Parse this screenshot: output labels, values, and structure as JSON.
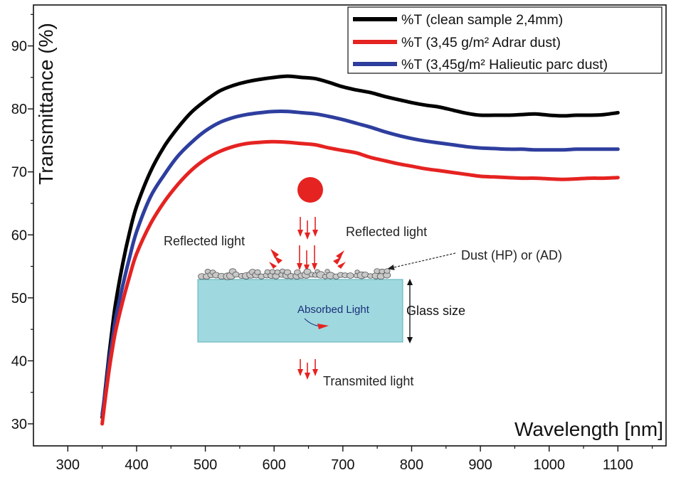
{
  "chart_data": {
    "type": "line",
    "title": "",
    "xlabel": "Wavelength [nm]",
    "ylabel": "Transmittance (%)",
    "xlim": [
      250,
      1170
    ],
    "ylim": [
      26.5,
      96.5
    ],
    "xticks": [
      300,
      400,
      500,
      600,
      700,
      800,
      900,
      1000,
      1100
    ],
    "yticks": [
      30,
      40,
      50,
      60,
      70,
      80,
      90
    ],
    "grid": false,
    "legend_position": "top-right",
    "series": [
      {
        "name": "%T (clean sample 2,4mm)",
        "color": "#000000",
        "x": [
          350,
          355,
          360,
          365,
          370,
          380,
          390,
          400,
          420,
          440,
          460,
          480,
          500,
          520,
          540,
          560,
          580,
          600,
          620,
          640,
          660,
          680,
          700,
          720,
          740,
          760,
          780,
          800,
          820,
          840,
          860,
          880,
          900,
          920,
          940,
          960,
          980,
          1000,
          1020,
          1040,
          1060,
          1080,
          1100
        ],
        "y": [
          31,
          36,
          41,
          45.5,
          49.5,
          55.5,
          60.5,
          64.5,
          70,
          74,
          77,
          79.5,
          81.3,
          82.8,
          83.7,
          84.3,
          84.7,
          85,
          85.2,
          85,
          84.8,
          84.2,
          83.5,
          83,
          82.6,
          82,
          81.5,
          81,
          80.6,
          80.3,
          79.8,
          79.3,
          79,
          79,
          79,
          79.1,
          79.2,
          79,
          78.9,
          79,
          79,
          79.1,
          79.4
        ]
      },
      {
        "name": "%T (3,45 g/m² Adrar dust)",
        "color": "#e52321",
        "x": [
          350,
          355,
          360,
          365,
          370,
          380,
          390,
          400,
          420,
          440,
          460,
          480,
          500,
          520,
          540,
          560,
          580,
          600,
          620,
          640,
          660,
          680,
          700,
          720,
          740,
          760,
          780,
          800,
          820,
          840,
          860,
          880,
          900,
          920,
          940,
          960,
          980,
          1000,
          1020,
          1040,
          1060,
          1080,
          1100
        ],
        "y": [
          30,
          34.5,
          38.5,
          42,
          45,
          49.5,
          53.5,
          57,
          61.7,
          65.2,
          68,
          70.3,
          72,
          73.2,
          74,
          74.5,
          74.7,
          74.8,
          74.7,
          74.5,
          74.3,
          73.8,
          73.4,
          73,
          72.3,
          71.8,
          71.3,
          70.9,
          70.5,
          70.2,
          69.9,
          69.6,
          69.3,
          69.2,
          69.1,
          69,
          69,
          68.9,
          68.8,
          68.9,
          69,
          69,
          69.1
        ]
      },
      {
        "name": "%T (3,45g/m² Halieutic parc dust)",
        "color": "#2e3e9e",
        "x": [
          350,
          355,
          360,
          365,
          370,
          380,
          390,
          400,
          420,
          440,
          460,
          480,
          500,
          520,
          540,
          560,
          580,
          600,
          620,
          640,
          660,
          680,
          700,
          720,
          740,
          760,
          780,
          800,
          820,
          840,
          860,
          880,
          900,
          920,
          940,
          960,
          980,
          1000,
          1020,
          1040,
          1060,
          1080,
          1100
        ],
        "y": [
          31.5,
          35.5,
          40,
          43.5,
          47,
          52,
          56.5,
          60.5,
          66,
          69.5,
          72.5,
          74.7,
          76.5,
          77.8,
          78.6,
          79.1,
          79.4,
          79.6,
          79.6,
          79.4,
          79.2,
          78.8,
          78.3,
          77.7,
          77.1,
          76.4,
          75.8,
          75.3,
          74.9,
          74.6,
          74.3,
          74,
          73.8,
          73.7,
          73.6,
          73.6,
          73.5,
          73.5,
          73.5,
          73.6,
          73.6,
          73.6,
          73.6
        ]
      }
    ]
  },
  "inset": {
    "labels": {
      "reflected_left": "Reflected light",
      "reflected_right": "Reflected light",
      "dust": "Dust (HP) or (AD)",
      "glass_size": "Glass size",
      "absorbed": "Absorbed Light",
      "transmitted": "Transmited light"
    },
    "colors": {
      "sun": "#e52321",
      "glass": "#9fd8de",
      "dust": "#c8c8c8",
      "arrows": "#e52321"
    }
  }
}
